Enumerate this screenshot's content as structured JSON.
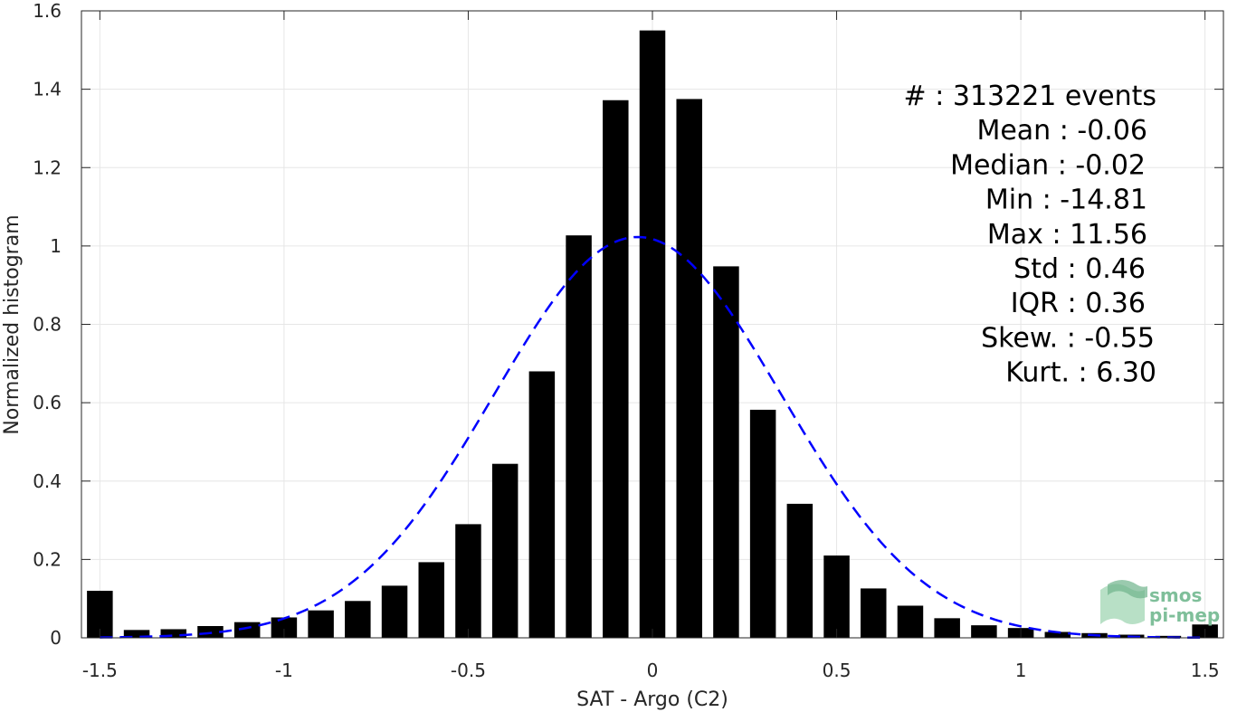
{
  "chart_data": {
    "type": "bar",
    "xlabel": "SAT - Argo (C2)",
    "ylabel": "Normalized histogram",
    "xlim": [
      -1.55,
      1.55
    ],
    "ylim": [
      0,
      1.6
    ],
    "grid": true,
    "x_ticks": [
      -1.5,
      -1,
      -0.5,
      0,
      0.5,
      1,
      1.5
    ],
    "x_tick_labels": [
      "-1.5",
      "-1",
      "-0.5",
      "0",
      "0.5",
      "1",
      "1.5"
    ],
    "y_ticks": [
      0,
      0.2,
      0.4,
      0.6,
      0.8,
      1,
      1.2,
      1.4,
      1.6
    ],
    "y_tick_labels": [
      "0",
      "0.2",
      "0.4",
      "0.6",
      "0.8",
      "1",
      "1.2",
      "1.4",
      "1.6"
    ],
    "bar_color": "#000000",
    "bins": [
      -1.5,
      -1.4,
      -1.3,
      -1.2,
      -1.1,
      -1.0,
      -0.9,
      -0.8,
      -0.7,
      -0.6,
      -0.5,
      -0.4,
      -0.3,
      -0.2,
      -0.1,
      0.0,
      0.1,
      0.2,
      0.3,
      0.4,
      0.5,
      0.6,
      0.7,
      0.8,
      0.9,
      1.0,
      1.1,
      1.2,
      1.3,
      1.4,
      1.5
    ],
    "values": [
      0.12,
      0.02,
      0.022,
      0.03,
      0.04,
      0.052,
      0.07,
      0.094,
      0.133,
      0.193,
      0.29,
      0.444,
      0.68,
      1.027,
      1.372,
      1.55,
      1.375,
      0.948,
      0.582,
      0.342,
      0.21,
      0.126,
      0.082,
      0.05,
      0.032,
      0.025,
      0.015,
      0.012,
      0.008,
      0.005,
      0.034
    ],
    "fit": {
      "kind": "normal",
      "mean": -0.04,
      "std": 0.39,
      "color": "#0000ff",
      "style": "dashed"
    },
    "stats": [
      {
        "label": "#  : 313221 events"
      },
      {
        "label": "Mean : -0.06"
      },
      {
        "label": "Median : -0.02"
      },
      {
        "label": "Min : -14.81"
      },
      {
        "label": "Max : 11.56"
      },
      {
        "label": "Std : 0.46"
      },
      {
        "label": "IQR : 0.36"
      },
      {
        "label": "Skew. : -0.55"
      },
      {
        "label": "Kurt. : 6.30"
      }
    ]
  },
  "logo": {
    "line1": "smos",
    "line2": "pi-mep",
    "color": "#7fbf9a"
  }
}
